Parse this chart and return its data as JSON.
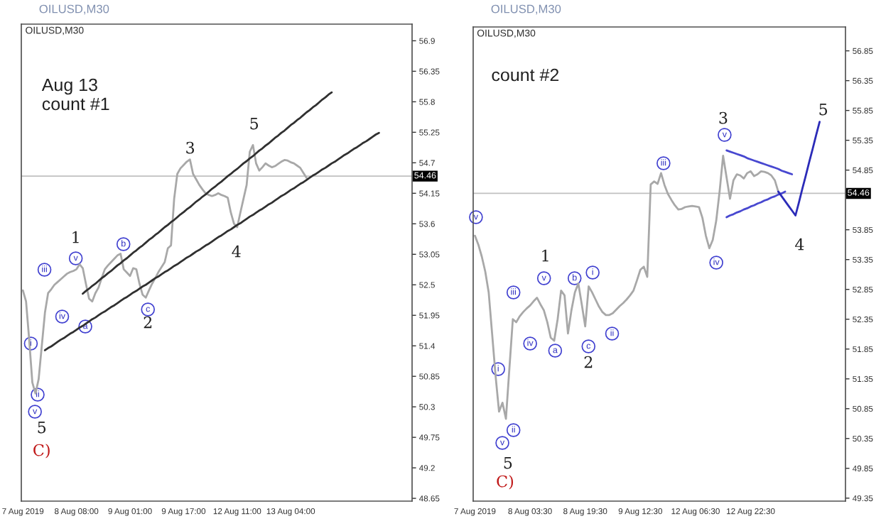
{
  "chart_data": [
    {
      "type": "line",
      "title": "OILUSD,M30",
      "subtitle": "OILUSD,M30",
      "categories": [
        "7 Aug 2019",
        null,
        null,
        null,
        null,
        null,
        null,
        null,
        null,
        null,
        null,
        null,
        null,
        null,
        null,
        null,
        null,
        "8 Aug 08:00",
        null,
        null,
        null,
        null,
        null,
        null,
        null,
        null,
        null,
        null,
        null,
        null,
        null,
        null,
        null,
        null,
        "9 Aug 01:00",
        null,
        null,
        null,
        null,
        null,
        null,
        null,
        null,
        null,
        null,
        null,
        null,
        null,
        null,
        null,
        null,
        "9 Aug 17:00",
        null,
        null,
        null,
        null,
        null,
        null,
        null,
        null,
        null,
        null,
        null,
        null,
        null,
        null,
        null,
        null,
        "12 Aug 11:00",
        null,
        null,
        null,
        null,
        null,
        null,
        null,
        null,
        null,
        null,
        null,
        null,
        null,
        null,
        null,
        null,
        "13 Aug 04:00",
        null,
        null,
        null,
        null,
        null,
        null,
        null,
        null,
        null,
        null,
        null,
        null,
        null,
        null,
        null,
        null,
        null,
        null,
        null,
        null,
        null,
        null,
        null,
        null,
        null,
        null,
        null,
        null,
        null,
        null,
        null,
        null,
        null,
        null,
        null,
        null,
        null,
        null
      ],
      "ylim": [
        48.6,
        57.2
      ],
      "yticks": [
        48.65,
        49.2,
        49.75,
        50.3,
        50.85,
        51.4,
        51.95,
        52.5,
        53.05,
        53.6,
        54.15,
        54.7,
        55.25,
        55.8,
        56.35,
        56.9
      ],
      "series": [
        {
          "color": "#a8a8a8",
          "values": [
            52.4,
            52.2,
            51.51,
            50.74,
            50.54,
            50.8,
            51.4,
            52.0,
            52.35,
            52.42,
            52.5,
            52.55,
            52.6,
            52.65,
            52.7,
            52.73,
            52.75,
            52.78,
            52.87,
            52.8,
            52.52,
            52.25,
            52.2,
            52.35,
            52.45,
            52.62,
            52.78,
            52.85,
            52.91,
            52.97,
            53.03,
            53.06,
            52.78,
            52.72,
            52.66,
            52.8,
            52.78,
            52.52,
            52.32,
            52.27,
            52.4,
            52.52,
            52.62,
            52.73,
            52.82,
            52.91,
            53.16,
            53.21,
            54.05,
            54.5,
            54.6,
            54.66,
            54.72,
            54.76,
            54.5,
            54.4,
            54.3,
            54.22,
            54.15,
            54.12,
            54.1,
            54.12,
            54.15,
            54.12,
            54.1,
            54.07,
            53.8,
            53.6,
            53.54,
            53.8,
            54.05,
            54.3,
            54.9,
            55.02,
            54.69,
            54.56,
            54.62,
            54.69,
            54.65,
            54.62,
            54.64,
            54.68,
            54.72,
            54.75,
            54.74,
            54.71,
            54.69,
            54.65,
            54.61,
            54.52,
            54.43,
            null,
            null,
            null,
            null,
            null,
            null,
            null,
            null,
            null,
            null,
            null,
            null,
            null,
            null,
            null,
            null,
            null,
            null,
            null,
            null,
            null,
            null,
            null,
            null,
            null,
            null,
            null,
            null,
            null,
            null,
            null,
            null,
            null
          ]
        },
        {
          "color": "#303030",
          "values": [
            null,
            null,
            null,
            null,
            null,
            null,
            null,
            null,
            null,
            null,
            null,
            null,
            null,
            null,
            null,
            null,
            null,
            null,
            null,
            52.34,
            52.39,
            52.43,
            52.48,
            52.52,
            52.57,
            52.62,
            52.66,
            52.71,
            52.75,
            52.8,
            52.85,
            52.89,
            52.94,
            52.98,
            53.03,
            53.08,
            53.12,
            53.17,
            53.21,
            53.26,
            53.31,
            53.35,
            53.4,
            53.44,
            53.49,
            53.54,
            53.58,
            53.63,
            53.67,
            53.72,
            53.77,
            53.81,
            53.86,
            53.9,
            53.95,
            54.0,
            54.04,
            54.09,
            54.13,
            54.18,
            54.23,
            54.27,
            54.32,
            54.36,
            54.41,
            54.46,
            54.5,
            54.55,
            54.59,
            54.64,
            54.69,
            54.73,
            54.78,
            54.82,
            54.87,
            54.92,
            54.96,
            55.01,
            55.05,
            55.1,
            55.15,
            55.19,
            55.24,
            55.28,
            55.33,
            55.38,
            55.42,
            55.47,
            55.51,
            55.56,
            55.61,
            55.65,
            55.7,
            55.74,
            55.79,
            55.84,
            55.88,
            55.93,
            55.97,
            null,
            null,
            null,
            null,
            null,
            null,
            null,
            null,
            null,
            null,
            null,
            null,
            null,
            null,
            null,
            null,
            null,
            null,
            null,
            null,
            null,
            null,
            null,
            null,
            null
          ]
        },
        {
          "color": "#303030",
          "values": [
            null,
            null,
            null,
            null,
            null,
            null,
            null,
            51.32,
            51.36,
            51.39,
            51.43,
            51.47,
            51.51,
            51.54,
            51.58,
            51.62,
            51.65,
            51.69,
            51.73,
            51.76,
            51.8,
            51.84,
            51.88,
            51.91,
            51.95,
            51.99,
            52.02,
            52.06,
            52.1,
            52.13,
            52.17,
            52.21,
            52.25,
            52.28,
            52.32,
            52.36,
            52.39,
            52.43,
            52.47,
            52.5,
            52.54,
            52.58,
            52.62,
            52.65,
            52.69,
            52.73,
            52.76,
            52.8,
            52.84,
            52.87,
            52.91,
            52.95,
            52.99,
            53.02,
            53.06,
            53.1,
            53.13,
            53.17,
            53.21,
            53.24,
            53.28,
            53.32,
            53.36,
            53.39,
            53.43,
            53.47,
            53.5,
            53.54,
            53.58,
            53.61,
            53.65,
            53.69,
            53.73,
            53.76,
            53.8,
            53.84,
            53.87,
            53.91,
            53.95,
            53.98,
            54.02,
            54.06,
            54.1,
            54.13,
            54.17,
            54.21,
            54.24,
            54.28,
            54.32,
            54.35,
            54.39,
            54.43,
            54.47,
            54.5,
            54.54,
            54.58,
            54.61,
            54.65,
            54.69,
            54.72,
            54.76,
            54.8,
            54.84,
            54.87,
            54.91,
            54.95,
            54.98,
            55.02,
            55.06,
            55.09,
            55.13,
            55.17,
            55.21,
            55.24,
            null,
            null,
            null,
            null,
            null,
            null,
            null,
            null,
            null,
            null
          ]
        }
      ],
      "ref_lines": [
        {
          "axis": "y",
          "value": 54.46,
          "label": "54.46",
          "color": "#c0c0c0"
        }
      ],
      "annotations": [
        "Aug 13\ncount #1",
        "1",
        "2",
        "3",
        "4",
        "5",
        "5",
        "C)",
        "iii",
        "v",
        "iv",
        "i",
        "ii",
        "v",
        "a",
        "b",
        "c"
      ]
    },
    {
      "type": "line",
      "title": "OILUSD,M30",
      "subtitle": "OILUSD,M30",
      "categories": [
        "7 Aug 2019",
        null,
        null,
        null,
        null,
        null,
        null,
        null,
        null,
        null,
        null,
        null,
        null,
        null,
        null,
        null,
        "8 Aug 03:30",
        null,
        null,
        null,
        null,
        null,
        null,
        null,
        null,
        null,
        null,
        null,
        null,
        null,
        null,
        null,
        "8 Aug 19:30",
        null,
        null,
        null,
        null,
        null,
        null,
        null,
        null,
        null,
        null,
        null,
        null,
        null,
        null,
        null,
        "9 Aug 12:30",
        null,
        null,
        null,
        null,
        null,
        null,
        null,
        null,
        null,
        null,
        null,
        null,
        null,
        null,
        null,
        "12 Aug 06:30",
        null,
        null,
        null,
        null,
        null,
        null,
        null,
        null,
        null,
        null,
        null,
        null,
        null,
        null,
        null,
        "12 Aug 22:30",
        null,
        null,
        null,
        null,
        null,
        null,
        null,
        null,
        null,
        null,
        null,
        null,
        null,
        null,
        null,
        null,
        null,
        null,
        null,
        null,
        null,
        null,
        null,
        null,
        null,
        null,
        null
      ],
      "ylim": [
        49.3,
        57.25
      ],
      "yticks": [
        49.35,
        49.85,
        50.35,
        50.85,
        51.35,
        51.85,
        52.35,
        52.85,
        53.35,
        53.85,
        54.85,
        55.35,
        55.85,
        56.35,
        56.85
      ],
      "series": [
        {
          "color": "#a8a8a8",
          "values": [
            53.75,
            53.6,
            53.4,
            53.15,
            52.8,
            52.1,
            51.4,
            50.8,
            50.95,
            50.68,
            51.52,
            52.35,
            52.3,
            52.4,
            52.47,
            52.53,
            52.58,
            52.65,
            52.71,
            52.6,
            52.5,
            52.3,
            52.04,
            51.99,
            52.35,
            52.83,
            52.75,
            52.11,
            52.5,
            52.8,
            52.95,
            52.6,
            52.23,
            52.9,
            52.8,
            52.68,
            52.56,
            52.47,
            52.42,
            52.42,
            52.45,
            52.51,
            52.57,
            52.62,
            52.68,
            52.75,
            52.83,
            53.0,
            53.18,
            53.23,
            53.06,
            54.61,
            54.66,
            54.62,
            54.8,
            54.6,
            54.45,
            54.35,
            54.26,
            54.19,
            54.2,
            54.23,
            54.24,
            54.25,
            54.24,
            54.23,
            54.05,
            53.75,
            53.54,
            53.68,
            54.0,
            54.5,
            55.09,
            54.73,
            54.37,
            54.68,
            54.78,
            54.76,
            54.71,
            54.8,
            54.83,
            54.75,
            54.78,
            54.83,
            54.82,
            54.8,
            54.76,
            54.68,
            54.49,
            null,
            null,
            null,
            null,
            null,
            null,
            null,
            null,
            null,
            null,
            null,
            null,
            null,
            null,
            null,
            null,
            null,
            null,
            null
          ]
        },
        {
          "color": "#4848d0",
          "values": [
            null,
            null,
            null,
            null,
            null,
            null,
            null,
            null,
            null,
            null,
            null,
            null,
            null,
            null,
            null,
            null,
            null,
            null,
            null,
            null,
            null,
            null,
            null,
            null,
            null,
            null,
            null,
            null,
            null,
            null,
            null,
            null,
            null,
            null,
            null,
            null,
            null,
            null,
            null,
            null,
            null,
            null,
            null,
            null,
            null,
            null,
            null,
            null,
            null,
            null,
            null,
            null,
            null,
            null,
            null,
            null,
            null,
            null,
            null,
            null,
            null,
            null,
            null,
            null,
            null,
            null,
            null,
            null,
            null,
            null,
            null,
            null,
            null,
            55.18,
            55.16,
            55.14,
            55.12,
            55.1,
            55.08,
            55.05,
            55.03,
            55.01,
            54.99,
            54.97,
            54.95,
            54.93,
            54.91,
            54.89,
            54.87,
            54.84,
            54.82,
            54.8,
            54.78,
            null,
            null,
            null,
            null,
            null,
            null,
            null,
            null,
            null,
            null,
            null,
            null,
            null,
            null,
            null
          ]
        },
        {
          "color": "#4848d0",
          "values": [
            null,
            null,
            null,
            null,
            null,
            null,
            null,
            null,
            null,
            null,
            null,
            null,
            null,
            null,
            null,
            null,
            null,
            null,
            null,
            null,
            null,
            null,
            null,
            null,
            null,
            null,
            null,
            null,
            null,
            null,
            null,
            null,
            null,
            null,
            null,
            null,
            null,
            null,
            null,
            null,
            null,
            null,
            null,
            null,
            null,
            null,
            null,
            null,
            null,
            null,
            null,
            null,
            null,
            null,
            null,
            null,
            null,
            null,
            null,
            null,
            null,
            null,
            null,
            null,
            null,
            null,
            null,
            null,
            null,
            null,
            null,
            null,
            null,
            54.06,
            54.09,
            54.11,
            54.14,
            54.16,
            54.19,
            54.21,
            54.24,
            54.26,
            54.29,
            54.31,
            54.34,
            54.36,
            54.39,
            54.41,
            54.44,
            54.46,
            54.49,
            null,
            null,
            null,
            null,
            null,
            null,
            null,
            null,
            null,
            null,
            null,
            null,
            null,
            null,
            null,
            null,
            null
          ]
        },
        {
          "color": "#2b2bb8",
          "values": [
            null,
            null,
            null,
            null,
            null,
            null,
            null,
            null,
            null,
            null,
            null,
            null,
            null,
            null,
            null,
            null,
            null,
            null,
            null,
            null,
            null,
            null,
            null,
            null,
            null,
            null,
            null,
            null,
            null,
            null,
            null,
            null,
            null,
            null,
            null,
            null,
            null,
            null,
            null,
            null,
            null,
            null,
            null,
            null,
            null,
            null,
            null,
            null,
            null,
            null,
            null,
            null,
            null,
            null,
            null,
            null,
            null,
            null,
            null,
            null,
            null,
            null,
            null,
            null,
            null,
            null,
            null,
            null,
            null,
            null,
            null,
            null,
            null,
            null,
            null,
            null,
            null,
            null,
            null,
            null,
            null,
            null,
            null,
            null,
            null,
            null,
            null,
            null,
            54.49,
            54.41,
            54.33,
            54.25,
            54.17,
            54.09,
            54.31,
            54.54,
            54.76,
            54.99,
            55.21,
            55.44,
            55.66,
            null,
            null,
            null,
            null,
            null,
            null,
            null
          ]
        }
      ],
      "ref_lines": [
        {
          "axis": "y",
          "value": 54.46,
          "label": "54.46",
          "color": "#c0c0c0"
        }
      ],
      "annotations": [
        "count #2",
        "1",
        "2",
        "3",
        "4",
        "5",
        "5",
        "C)",
        "v",
        "iii",
        "v",
        "iv",
        "iii",
        "v",
        "b",
        "i",
        "iv",
        "a",
        "c",
        "ii",
        "i",
        "ii",
        "v"
      ]
    }
  ]
}
